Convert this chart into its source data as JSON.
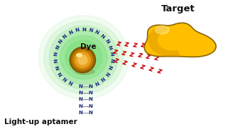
{
  "title": "Target",
  "label_lightup": "Light-up aptamer",
  "label_dye": "Dye",
  "bg_color": "#ffffff",
  "glow_color": "#7ddf7d",
  "aptamer_ring_color": "#1a237e",
  "stem_color_N": "#1a237e",
  "stem_dash_color": "#888888",
  "zzz_color": "#cc0000",
  "target_color_main": "#ffbf00",
  "target_color_dark": "#cc8800",
  "target_outline": "#886600",
  "figsize": [
    3.21,
    1.89
  ],
  "dpi": 100
}
